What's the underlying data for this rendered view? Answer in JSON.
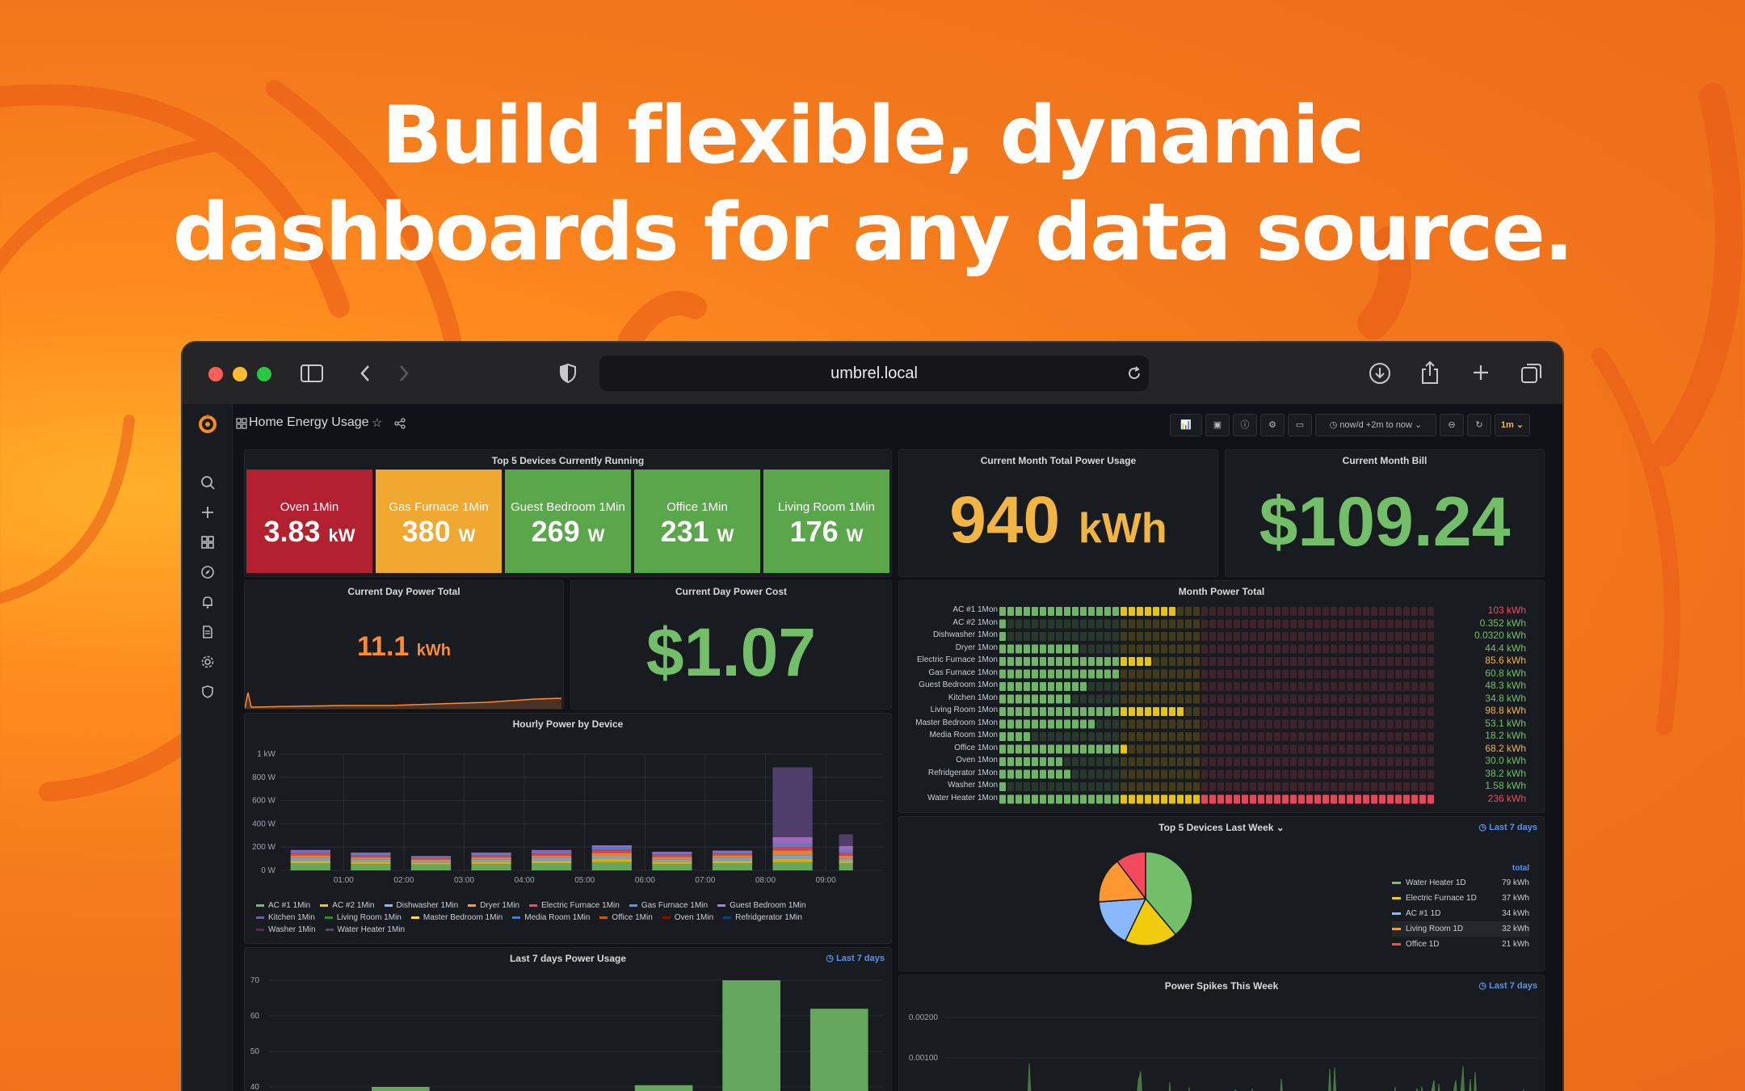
{
  "headline": {
    "line1": "Build flexible, dynamic",
    "line2": "dashboards for any data source."
  },
  "browser": {
    "url": "umbrel.local",
    "icons": [
      "sidebar-icon",
      "back-icon",
      "forward-icon",
      "shield-icon",
      "reload-icon",
      "download-icon",
      "share-icon",
      "new-tab-icon",
      "tabs-icon"
    ]
  },
  "dashboard": {
    "title": "Home Energy Usage",
    "time_range": "now/d +2m to now",
    "refresh": "1m"
  },
  "top5": {
    "title": "Top 5 Devices Currently Running",
    "tiles": [
      {
        "name": "Oven 1Min",
        "value": "3.83",
        "unit": "kW",
        "color": "#b3202f"
      },
      {
        "name": "Gas Furnace 1Min",
        "value": "380",
        "unit": "W",
        "color": "#f0a830"
      },
      {
        "name": "Guest Bedroom 1Min",
        "value": "269",
        "unit": "W",
        "color": "#5aa64b"
      },
      {
        "name": "Office 1Min",
        "value": "231",
        "unit": "W",
        "color": "#5aa64b"
      },
      {
        "name": "Living Room 1Min",
        "value": "176",
        "unit": "W",
        "color": "#5aa64b"
      }
    ]
  },
  "month_usage": {
    "title": "Current Month Total Power Usage",
    "value": "940",
    "unit": "kWh",
    "color": "#f2b544"
  },
  "month_bill": {
    "title": "Current Month Bill",
    "value": "$109.24",
    "color": "#73bf69"
  },
  "day_total": {
    "title": "Current Day Power Total",
    "value": "11.1",
    "unit": "kWh",
    "color": "#ff8a30"
  },
  "day_cost": {
    "title": "Current Day Power Cost",
    "value": "$1.07",
    "color": "#73bf69"
  },
  "month_power": {
    "title": "Month Power Total",
    "rows": [
      {
        "label": "AC #1 1Mon",
        "value": "103 kWh",
        "color": "#f2495c",
        "level": 0.4
      },
      {
        "label": "AC #2 1Mon",
        "value": "0.352 kWh",
        "color": "#73bf69",
        "level": 0.01
      },
      {
        "label": "Dishwasher 1Mon",
        "value": "0.0320 kWh",
        "color": "#73bf69",
        "level": 0.0
      },
      {
        "label": "Dryer 1Mon",
        "value": "44.4 kWh",
        "color": "#73bf69",
        "level": 0.19
      },
      {
        "label": "Electric Furnace 1Mon",
        "value": "85.6 kWh",
        "color": "#f2b544",
        "level": 0.36
      },
      {
        "label": "Gas Furnace 1Mon",
        "value": "60.8 kWh",
        "color": "#73bf69",
        "level": 0.27
      },
      {
        "label": "Guest Bedroom 1Mon",
        "value": "48.3 kWh",
        "color": "#73bf69",
        "level": 0.21
      },
      {
        "label": "Kitchen 1Mon",
        "value": "34.8 kWh",
        "color": "#73bf69",
        "level": 0.16
      },
      {
        "label": "Living Room 1Mon",
        "value": "98.8 kWh",
        "color": "#f2b544",
        "level": 0.42
      },
      {
        "label": "Master Bedroom 1Mon",
        "value": "53.1 kWh",
        "color": "#73bf69",
        "level": 0.23
      },
      {
        "label": "Media Room 1Mon",
        "value": "18.2 kWh",
        "color": "#73bf69",
        "level": 0.08
      },
      {
        "label": "Office 1Mon",
        "value": "68.2 kWh",
        "color": "#f2b544",
        "level": 0.3
      },
      {
        "label": "Oven 1Mon",
        "value": "30.0 kWh",
        "color": "#73bf69",
        "level": 0.14
      },
      {
        "label": "Refridgerator 1Mon",
        "value": "38.2 kWh",
        "color": "#73bf69",
        "level": 0.17
      },
      {
        "label": "Washer 1Mon",
        "value": "1.58 kWh",
        "color": "#73bf69",
        "level": 0.01
      },
      {
        "label": "Water Heater 1Mon",
        "value": "236 kWh",
        "color": "#f2495c",
        "level": 1.0
      }
    ]
  },
  "hourly": {
    "title": "Hourly Power by Device",
    "legend_rows": [
      [
        {
          "name": "AC #1 1Min",
          "color": "#73bf69"
        },
        {
          "name": "AC #2 1Min",
          "color": "#f2cc0c"
        },
        {
          "name": "Dishwasher 1Min",
          "color": "#8ab8ff"
        },
        {
          "name": "Dryer 1Min",
          "color": "#ff9830"
        },
        {
          "name": "Electric Furnace 1Min",
          "color": "#f2495c"
        },
        {
          "name": "Gas Furnace 1Min",
          "color": "#5794f2"
        },
        {
          "name": "Guest Bedroom 1Min",
          "color": "#b877d9"
        }
      ],
      [
        {
          "name": "Kitchen 1Min",
          "color": "#705da0"
        },
        {
          "name": "Living Room 1Min",
          "color": "#37872d"
        },
        {
          "name": "Master Bedroom 1Min",
          "color": "#fade2a"
        },
        {
          "name": "Media Room 1Min",
          "color": "#447ebc"
        },
        {
          "name": "Office 1Min",
          "color": "#c15c17"
        },
        {
          "name": "Oven 1Min",
          "color": "#890f02"
        },
        {
          "name": "Refridgerator 1Min",
          "color": "#0a437c"
        }
      ],
      [
        {
          "name": "Washer 1Min",
          "color": "#6d1f62"
        },
        {
          "name": "Water Heater 1Min",
          "color": "#584477"
        }
      ]
    ]
  },
  "top5_week": {
    "title": "Top 5 Devices Last Week",
    "range": "Last 7 days",
    "column": "total",
    "items": [
      {
        "name": "Water Heater 1D",
        "value": "79 kWh",
        "color": "#73bf69"
      },
      {
        "name": "Electric Furnace 1D",
        "value": "37 kWh",
        "color": "#f2cc0c"
      },
      {
        "name": "AC #1 1D",
        "value": "34 kWh",
        "color": "#8ab8ff"
      },
      {
        "name": "Living Room 1D",
        "value": "32 kWh",
        "color": "#ff9830"
      },
      {
        "name": "Office 1D",
        "value": "21 kWh",
        "color": "#f2495c"
      }
    ]
  },
  "last7": {
    "title": "Last 7 days Power Usage",
    "range": "Last 7 days"
  },
  "spikes": {
    "title": "Power Spikes This Week",
    "range": "Last 7 days"
  },
  "chart_data": [
    {
      "type": "bar",
      "title": "Hourly Power by Device",
      "categories": [
        "00:30",
        "01:00",
        "02:00",
        "03:00",
        "04:00",
        "05:00",
        "06:00",
        "07:00",
        "08:00",
        "09:00"
      ],
      "x_ticks": [
        "01:00",
        "02:00",
        "03:00",
        "04:00",
        "05:00",
        "06:00",
        "07:00",
        "08:00",
        "09:00"
      ],
      "y_ticks": [
        "1 kW",
        "800 W",
        "600 W",
        "400 W",
        "200 W",
        "0 W"
      ],
      "ylim": [
        0,
        1000
      ],
      "stacked": true,
      "series": [
        {
          "name": "AC #1 1Min",
          "color": "#73bf69",
          "values": [
            60,
            55,
            50,
            55,
            60,
            70,
            55,
            60,
            70,
            60
          ]
        },
        {
          "name": "AC #2 1Min",
          "color": "#f2cc0c",
          "values": [
            25,
            20,
            15,
            20,
            25,
            30,
            20,
            25,
            30,
            20
          ]
        },
        {
          "name": "Dishwasher 1Min",
          "color": "#8ab8ff",
          "values": [
            20,
            18,
            15,
            18,
            20,
            25,
            20,
            20,
            30,
            20
          ]
        },
        {
          "name": "Dryer 1Min",
          "color": "#ff9830",
          "values": [
            25,
            20,
            15,
            20,
            20,
            25,
            20,
            25,
            40,
            25
          ]
        },
        {
          "name": "Electric Furnace 1Min",
          "color": "#f2495c",
          "values": [
            20,
            15,
            10,
            15,
            20,
            30,
            20,
            15,
            30,
            25
          ]
        },
        {
          "name": "Gas Furnace 1Min",
          "color": "#5794f2",
          "values": [
            15,
            15,
            10,
            15,
            20,
            20,
            15,
            15,
            25,
            20
          ]
        },
        {
          "name": "Guest Bedroom 1Min",
          "color": "#b877d9",
          "values": [
            10,
            10,
            8,
            10,
            10,
            15,
            10,
            10,
            60,
            40
          ]
        },
        {
          "name": "Water Heater 1Min",
          "color": "#584477",
          "values": [
            0,
            0,
            0,
            0,
            0,
            0,
            0,
            0,
            600,
            100
          ]
        }
      ]
    },
    {
      "type": "bar",
      "title": "Last 7 days Power Usage",
      "y_ticks": [
        "70",
        "60",
        "50",
        "40"
      ],
      "ylim": [
        35,
        73
      ],
      "values": [
        null,
        40,
        null,
        null,
        40.5,
        70,
        62
      ],
      "color": "#73bf69"
    },
    {
      "type": "pie",
      "title": "Top 5 Devices Last Week",
      "categories": [
        "Water Heater 1D",
        "Electric Furnace 1D",
        "AC #1 1D",
        "Living Room 1D",
        "Office 1D"
      ],
      "values": [
        79,
        37,
        34,
        32,
        21
      ],
      "colors": [
        "#73bf69",
        "#f2cc0c",
        "#8ab8ff",
        "#ff9830",
        "#f2495c"
      ]
    },
    {
      "type": "line",
      "title": "Power Spikes This Week",
      "y_ticks": [
        "0.00200",
        "0.00100"
      ]
    }
  ]
}
